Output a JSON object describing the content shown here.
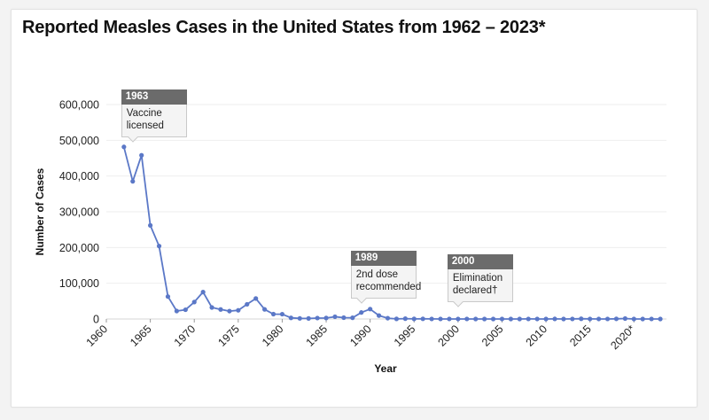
{
  "colors": {
    "line": "#5b78c7",
    "callout_header": "#6b6b6b",
    "grid": "#eeeeee"
  },
  "chart_data": {
    "type": "line",
    "title": "Reported Measles Cases in the United States from 1962 – 2023*",
    "xlabel": "Year",
    "ylabel": "Number of Cases",
    "xlim": [
      1960,
      2023.7
    ],
    "ylim": [
      0,
      600000
    ],
    "grid": true,
    "y_ticks": [
      0,
      100000,
      200000,
      300000,
      400000,
      500000,
      600000
    ],
    "y_tick_labels": [
      "0",
      "100,000",
      "200,000",
      "300,000",
      "400,000",
      "500,000",
      "600,000"
    ],
    "x_ticks": [
      1960,
      1965,
      1970,
      1975,
      1980,
      1985,
      1990,
      1995,
      2000,
      2005,
      2010,
      2015,
      2020
    ],
    "x_tick_labels": [
      "1960",
      "1965",
      "1970",
      "1975",
      "1980",
      "1985",
      "1990",
      "1995",
      "2000",
      "2005",
      "2010",
      "2015",
      "2020*"
    ],
    "series": [
      {
        "name": "Reported measles cases",
        "x": [
          1962,
          1963,
          1964,
          1965,
          1966,
          1967,
          1968,
          1969,
          1970,
          1971,
          1972,
          1973,
          1974,
          1975,
          1976,
          1977,
          1978,
          1979,
          1980,
          1981,
          1982,
          1983,
          1984,
          1985,
          1986,
          1987,
          1988,
          1989,
          1990,
          1991,
          1992,
          1993,
          1994,
          1995,
          1996,
          1997,
          1998,
          1999,
          2000,
          2001,
          2002,
          2003,
          2004,
          2005,
          2006,
          2007,
          2008,
          2009,
          2010,
          2011,
          2012,
          2013,
          2014,
          2015,
          2016,
          2017,
          2018,
          2019,
          2020,
          2021,
          2022,
          2023
        ],
        "values": [
          481530,
          385156,
          458083,
          261904,
          204136,
          62705,
          22231,
          25826,
          47351,
          75290,
          32275,
          26690,
          22094,
          24374,
          41126,
          57345,
          26871,
          13597,
          13506,
          3124,
          1714,
          1497,
          2587,
          2822,
          6282,
          3655,
          3396,
          18193,
          27786,
          9643,
          2237,
          312,
          963,
          281,
          508,
          138,
          100,
          100,
          86,
          116,
          44,
          56,
          37,
          66,
          55,
          43,
          140,
          71,
          63,
          220,
          55,
          187,
          667,
          188,
          86,
          120,
          375,
          1274,
          13,
          49,
          121,
          59
        ]
      }
    ],
    "annotations": [
      {
        "id": "vaccine",
        "year": 1963,
        "header": "1963",
        "lines": [
          "Vaccine",
          "licensed"
        ]
      },
      {
        "id": "second-dose",
        "year": 1989,
        "header": "1989",
        "lines": [
          "2nd dose",
          "recommended"
        ]
      },
      {
        "id": "elimination",
        "year": 2000,
        "header": "2000",
        "lines": [
          "Elimination",
          "declared†"
        ]
      }
    ]
  }
}
